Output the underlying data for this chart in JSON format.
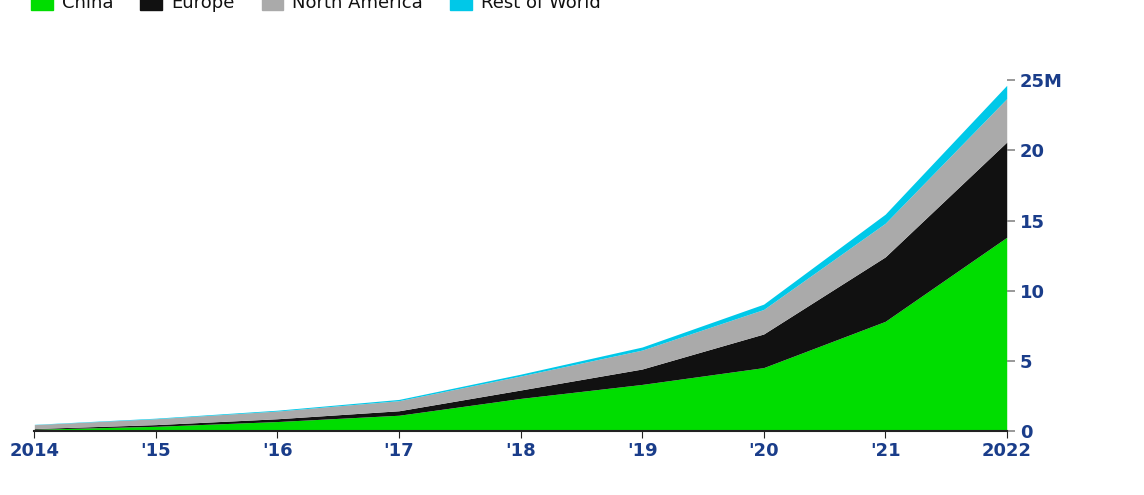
{
  "years": [
    2014,
    2015,
    2016,
    2017,
    2018,
    2019,
    2020,
    2021,
    2022
  ],
  "china": [
    0.1,
    0.31,
    0.65,
    1.1,
    2.3,
    3.3,
    4.5,
    7.8,
    13.8
  ],
  "europe": [
    0.05,
    0.12,
    0.2,
    0.32,
    0.6,
    1.1,
    2.4,
    4.6,
    6.8
  ],
  "north_america": [
    0.28,
    0.42,
    0.55,
    0.72,
    1.0,
    1.35,
    1.75,
    2.4,
    3.1
  ],
  "rest_of_world": [
    0.02,
    0.04,
    0.06,
    0.09,
    0.13,
    0.22,
    0.38,
    0.65,
    0.95
  ],
  "colors": {
    "china": "#00dd00",
    "europe": "#111111",
    "north_america": "#aaaaaa",
    "rest_of_world": "#00c8e8"
  },
  "legend_labels": [
    "China",
    "Europe",
    "North America",
    "Rest of World"
  ],
  "yticks": [
    0,
    5,
    10,
    15,
    20,
    25
  ],
  "ytick_labels": [
    "0",
    "5",
    "10",
    "15",
    "20",
    "25M"
  ],
  "xtick_labels": [
    "2014",
    "'15",
    "'16",
    "'17",
    "'18",
    "'19",
    "'20",
    "'21",
    "2022"
  ],
  "ylim": [
    0,
    26.5
  ],
  "xlim": [
    2014,
    2022
  ],
  "background_color": "#ffffff",
  "label_fontsize": 13,
  "legend_fontsize": 13,
  "tick_label_color": "#1a3d8a"
}
